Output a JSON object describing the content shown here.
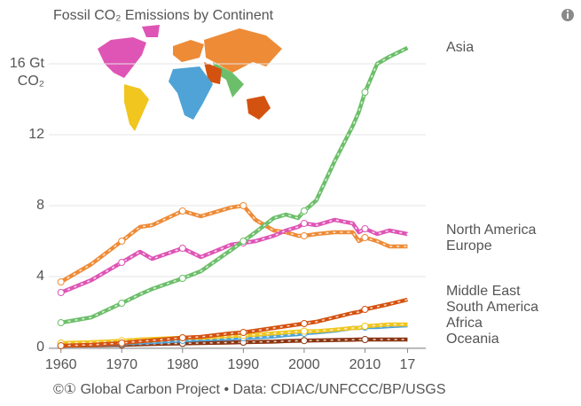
{
  "chart_data": {
    "type": "line",
    "title": "Fossil CO₂ Emissions by Continent",
    "y_unit": "CO₂",
    "footer": "©① Global Carbon Project  •  Data: CDIAC/UNFCCC/BP/USGS",
    "x": [
      1960,
      1965,
      1970,
      1973,
      1975,
      1980,
      1983,
      1988,
      1990,
      1992,
      1995,
      1997,
      1999,
      2000,
      2002,
      2005,
      2008,
      2009,
      2010,
      2012,
      2014,
      2017
    ],
    "xlim": [
      1958,
      2020
    ],
    "xticks": [
      1960,
      1970,
      1980,
      1990,
      2000,
      2010,
      {
        "value": 2017,
        "label": "17"
      }
    ],
    "ylim": [
      0,
      18
    ],
    "yticks": [
      0,
      4,
      8,
      12,
      {
        "value": 16,
        "label": "16 Gt"
      }
    ],
    "grid": true,
    "series": [
      {
        "name": "Asia",
        "color": "#6cbf6a",
        "values": [
          1.4,
          1.7,
          2.5,
          3.0,
          3.3,
          3.9,
          4.3,
          5.5,
          6.0,
          6.5,
          7.3,
          7.5,
          7.3,
          7.7,
          8.3,
          10.5,
          12.5,
          13.3,
          14.4,
          16.0,
          16.4,
          16.9
        ]
      },
      {
        "name": "North America",
        "color": "#de55b5",
        "values": [
          3.1,
          3.8,
          4.8,
          5.4,
          5.0,
          5.6,
          5.1,
          5.8,
          5.9,
          6.0,
          6.3,
          6.6,
          6.8,
          7.0,
          6.9,
          7.2,
          7.0,
          6.5,
          6.7,
          6.4,
          6.6,
          6.4
        ]
      },
      {
        "name": "Europe",
        "color": "#ee8b37",
        "values": [
          3.7,
          4.7,
          6.0,
          6.8,
          6.9,
          7.7,
          7.4,
          7.9,
          8.0,
          7.2,
          6.6,
          6.5,
          6.3,
          6.3,
          6.4,
          6.5,
          6.5,
          6.0,
          6.2,
          6.0,
          5.7,
          5.7
        ]
      },
      {
        "name": "Middle East",
        "color": "#d4520f",
        "values": [
          0.1,
          0.15,
          0.25,
          0.35,
          0.4,
          0.55,
          0.6,
          0.8,
          0.85,
          0.95,
          1.1,
          1.2,
          1.3,
          1.35,
          1.45,
          1.7,
          1.95,
          2.0,
          2.15,
          2.3,
          2.45,
          2.7
        ]
      },
      {
        "name": "South America",
        "color": "#f0c61f",
        "values": [
          0.25,
          0.3,
          0.38,
          0.45,
          0.48,
          0.55,
          0.55,
          0.65,
          0.68,
          0.72,
          0.8,
          0.85,
          0.9,
          0.92,
          0.92,
          1.0,
          1.1,
          1.1,
          1.2,
          1.25,
          1.3,
          1.3
        ]
      },
      {
        "name": "Africa",
        "color": "#4fa3d6",
        "values": [
          0.1,
          0.15,
          0.22,
          0.28,
          0.3,
          0.4,
          0.45,
          0.5,
          0.55,
          0.57,
          0.62,
          0.7,
          0.75,
          0.8,
          0.85,
          0.95,
          1.1,
          1.1,
          1.15,
          1.15,
          1.2,
          1.25
        ]
      },
      {
        "name": "Oceania",
        "color": "#8b3511",
        "values": [
          0.1,
          0.12,
          0.15,
          0.18,
          0.2,
          0.23,
          0.25,
          0.28,
          0.3,
          0.31,
          0.33,
          0.36,
          0.38,
          0.39,
          0.4,
          0.42,
          0.44,
          0.45,
          0.45,
          0.45,
          0.45,
          0.45
        ]
      }
    ]
  }
}
